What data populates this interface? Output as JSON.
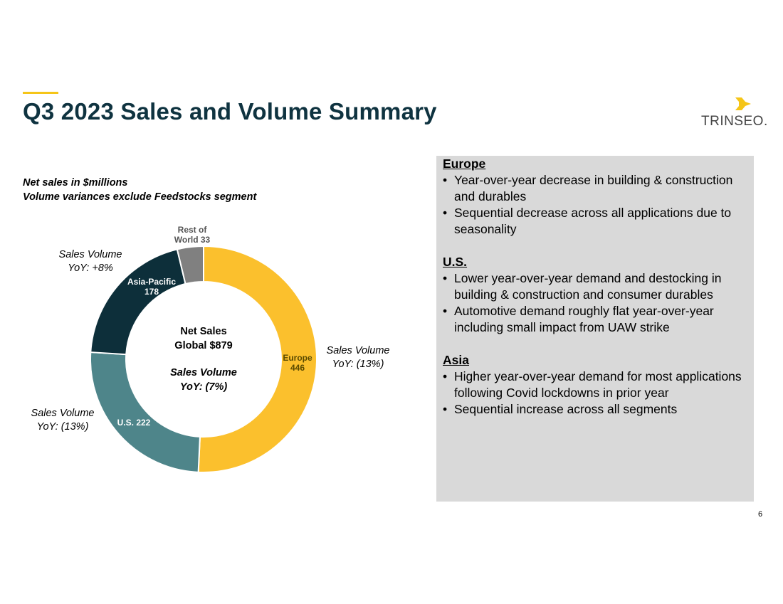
{
  "slide": {
    "title": "Q3 2023 Sales and Volume Summary",
    "logo_text": "TRINSEO.",
    "subtitle_line1": "Net sales in $millions",
    "subtitle_line2": "Volume variances exclude Feedstocks segment",
    "page_number": "6",
    "accent_color": "#f5c518"
  },
  "chart_data": {
    "type": "pie",
    "donut": true,
    "total": 879,
    "center_line1": "Net Sales",
    "center_line2": "Global $879",
    "center_line3": "Sales Volume",
    "center_line4": "YoY: (7%)",
    "slices": [
      {
        "name": "Europe",
        "value": 446,
        "label_line1": "Europe",
        "label_line2": "446",
        "color": "#fbc02d",
        "label_color": "#5a4a00",
        "callout_line1": "Sales Volume",
        "callout_line2": "YoY: (13%)"
      },
      {
        "name": "U.S.",
        "value": 222,
        "label_line1": "U.S. 222",
        "label_line2": "",
        "color": "#4e858a",
        "label_color": "#ffffff",
        "callout_line1": "Sales Volume",
        "callout_line2": "YoY: (13%)"
      },
      {
        "name": "Asia-Pacific",
        "value": 178,
        "label_line1": "Asia-Pacific",
        "label_line2": "178",
        "color": "#0d2f3a",
        "label_color": "#ffffff",
        "callout_line1": "Sales Volume",
        "callout_line2": "YoY: +8%"
      },
      {
        "name": "Rest of World",
        "value": 33,
        "label_line1": "Rest of",
        "label_line2": "World 33",
        "color": "#808080",
        "label_color": "#555555",
        "callout_line1": "",
        "callout_line2": ""
      }
    ]
  },
  "panel": {
    "background": "#d9d9d9",
    "sections": [
      {
        "heading": "Europe",
        "bullets": [
          "Year-over-year decrease in building & construction and durables",
          "Sequential decrease across all applications due to seasonality"
        ]
      },
      {
        "heading": "U.S.",
        "bullets": [
          "Lower year-over-year demand and destocking in building & construction and consumer durables",
          "Automotive demand roughly flat year-over-year including small impact from UAW strike"
        ]
      },
      {
        "heading": "Asia",
        "bullets": [
          "Higher year-over-year demand for most applications following Covid lockdowns in prior year",
          "Sequential increase across all segments"
        ]
      }
    ]
  }
}
